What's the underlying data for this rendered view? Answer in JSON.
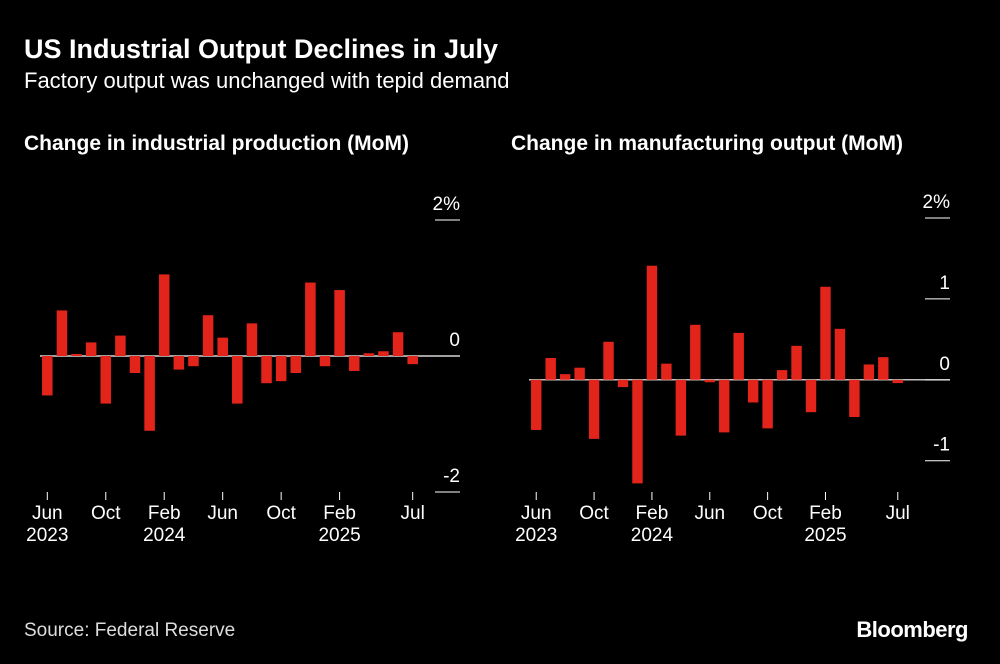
{
  "title": "US Industrial Output Declines in July",
  "subtitle": "Factory output was unchanged with tepid demand",
  "source": "Source: Federal Reserve",
  "brand": "Bloomberg",
  "chart_data": [
    {
      "type": "bar",
      "title": "Change in industrial production (MoM)",
      "color": "#e3241b",
      "categories": [
        "Jun\n2023",
        null,
        null,
        null,
        "Oct",
        null,
        null,
        null,
        "Feb\n2024",
        null,
        null,
        null,
        "Jun",
        null,
        null,
        null,
        "Oct",
        null,
        null,
        null,
        "Feb\n2025",
        null,
        null,
        null,
        null,
        "Jul"
      ],
      "values": [
        -0.58,
        0.67,
        0.03,
        0.2,
        -0.7,
        0.3,
        -0.25,
        -1.1,
        1.2,
        -0.2,
        -0.15,
        0.6,
        0.27,
        -0.7,
        0.48,
        -0.4,
        -0.37,
        -0.25,
        1.08,
        -0.15,
        0.97,
        -0.22,
        0.04,
        0.07,
        0.35,
        -0.12
      ],
      "ylim": [
        -2,
        2
      ],
      "yticks": [
        {
          "value": 2,
          "label": "2%"
        },
        0,
        -2
      ]
    },
    {
      "type": "bar",
      "title": "Change in manufacturing output (MoM)",
      "color": "#e3241b",
      "categories": [
        "Jun\n2023",
        null,
        null,
        null,
        "Oct",
        null,
        null,
        null,
        "Feb\n2024",
        null,
        null,
        null,
        "Jun",
        null,
        null,
        null,
        "Oct",
        null,
        null,
        null,
        "Feb\n2025",
        null,
        null,
        null,
        null,
        "Jul"
      ],
      "values": [
        -0.62,
        0.27,
        0.07,
        0.15,
        -0.73,
        0.47,
        -0.09,
        -1.28,
        1.41,
        0.2,
        -0.69,
        0.68,
        -0.03,
        -0.65,
        0.58,
        -0.28,
        -0.6,
        0.12,
        0.42,
        -0.4,
        1.15,
        0.63,
        -0.46,
        0.19,
        0.28,
        -0.04
      ],
      "ylim": [
        -1.3,
        2
      ],
      "yticks": [
        {
          "value": 2,
          "label": "2%"
        },
        1,
        0,
        -1
      ]
    }
  ]
}
